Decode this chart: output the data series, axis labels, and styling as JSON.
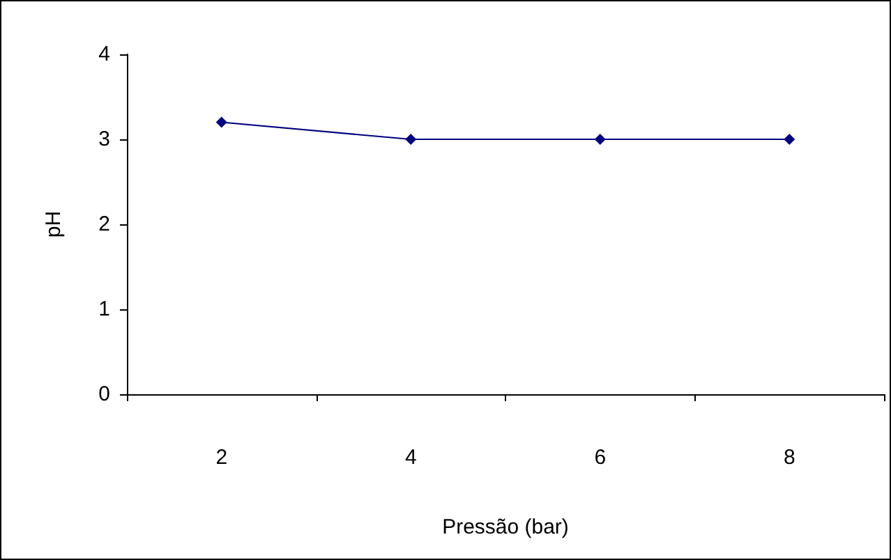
{
  "chart_data": {
    "type": "line",
    "xlabel": "Pressão (bar)",
    "ylabel": "pH",
    "categories": [
      "2",
      "4",
      "6",
      "8"
    ],
    "series": [
      {
        "color": "#000080",
        "values": [
          3.2,
          3,
          3,
          3
        ]
      }
    ],
    "ylim": [
      0,
      4
    ],
    "yticks": [
      0,
      1,
      2,
      3,
      4
    ],
    "grid": false,
    "marker": "diamond",
    "line_style": "solid"
  }
}
